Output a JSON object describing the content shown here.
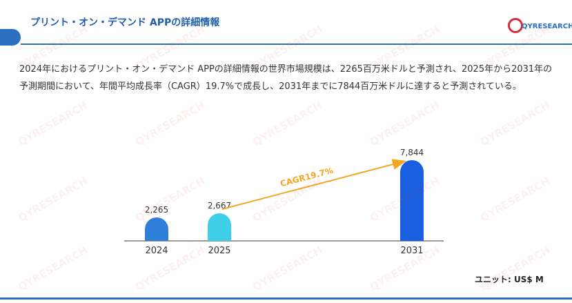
{
  "header": {
    "title": "プリント・オン・デマンド APPの詳細情報",
    "logo_text": "QYRESEARCH"
  },
  "description": "2024年におけるプリント・オン・デマンド APPの詳細情報の世界市場規模は、2265百万米ドルと予測され、2025年から2031年の予測期間において、年間平均成長率（CAGR）19.7%で成長し、2031年までに7844百万米ドルに達すると予測されている。",
  "unit_label": "ユニット: US$ M",
  "colors": {
    "accent": "#2a6fc0",
    "arrow": "#f5a623"
  },
  "chart_data": {
    "type": "bar",
    "categories": [
      "2024",
      "2025",
      "2031"
    ],
    "values": [
      2265,
      2667,
      7844
    ],
    "value_labels": [
      "2,265",
      "2,667",
      "7,844"
    ],
    "bar_colors": [
      "#2f7fd8",
      "#3fcfe8",
      "#1a5fe0"
    ],
    "annotation": "CAGR19.7%",
    "title": "",
    "xlabel": "",
    "ylabel": "",
    "ylim": [
      0,
      8000
    ]
  }
}
